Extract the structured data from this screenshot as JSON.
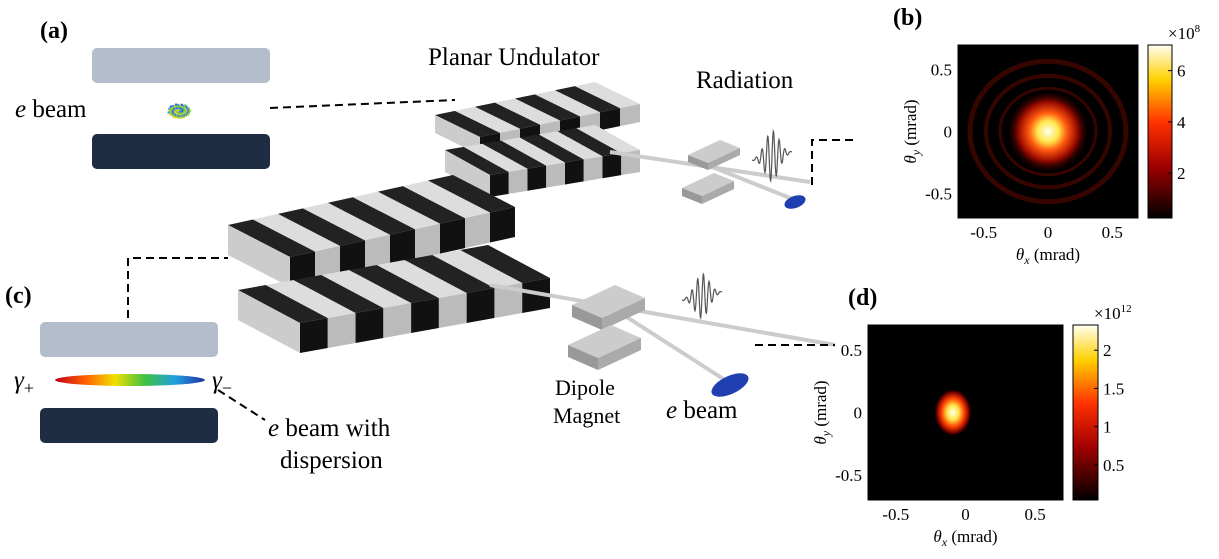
{
  "labels": {
    "a": "(a)",
    "b": "(b)",
    "c": "(c)",
    "d": "(d)"
  },
  "diagram": {
    "undulator": "Planar Undulator",
    "radiation": "Radiation",
    "ebeam_top": {
      "symbol": "e",
      "text": "beam"
    },
    "ebeam_bottom": {
      "symbol": "e",
      "text": "beam"
    },
    "ebeam_dispersion": {
      "symbol": "e",
      "text": "beam with",
      "line2": "dispersion"
    },
    "dipole": [
      "Dipole",
      "Magnet"
    ],
    "gamma_plus": {
      "symbol": "γ",
      "sub": "+"
    },
    "gamma_minus": {
      "symbol": "γ",
      "sub": "−"
    }
  },
  "plots": [
    {
      "xlabel": {
        "symbol": "θ",
        "sub": "x",
        "unit": "(mrad)"
      },
      "ylabel": {
        "symbol": "θ",
        "sub": "y",
        "unit": "(mrad)"
      },
      "xlim": [
        -0.7,
        0.7
      ],
      "ylim": [
        -0.7,
        0.7
      ],
      "xticks": [
        -0.5,
        0,
        0.5
      ],
      "yticks": [
        -0.5,
        0,
        0.5
      ],
      "colorbar": {
        "lim": [
          0.25,
          7
        ],
        "ticks": [
          2,
          4,
          6
        ],
        "multiplier": {
          "base": "×10",
          "exp": "8"
        }
      }
    },
    {
      "xlabel": {
        "symbol": "θ",
        "sub": "x",
        "unit": "(mrad)"
      },
      "ylabel": {
        "symbol": "θ",
        "sub": "y",
        "unit": "(mrad)"
      },
      "xlim": [
        -0.7,
        0.7
      ],
      "ylim": [
        -0.7,
        0.7
      ],
      "xticks": [
        -0.5,
        0,
        0.5
      ],
      "yticks": [
        -0.5,
        0,
        0.5
      ],
      "colorbar": {
        "lim": [
          0.04,
          2.33
        ],
        "ticks": [
          0.5,
          1,
          1.5,
          2
        ],
        "multiplier": {
          "base": "×10",
          "exp": "12"
        }
      }
    }
  ]
}
